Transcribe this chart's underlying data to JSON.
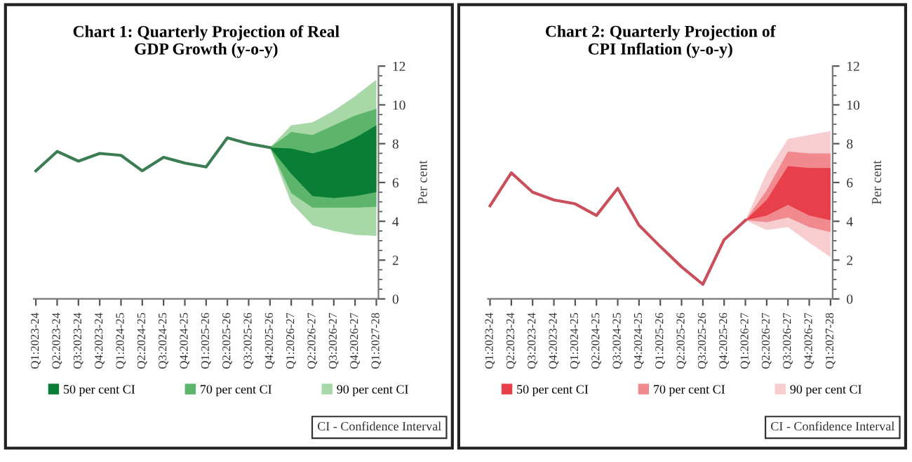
{
  "chart_data": [
    {
      "type": "line",
      "title": "Chart 1: Quarterly Projection of Real\nGDP Growth (y-o-y)",
      "ylabel": "Per cent",
      "categories": [
        "Q1:2023-24",
        "Q2:2023-24",
        "Q3:2023-24",
        "Q4:2023-24",
        "Q1:2024-25",
        "Q2:2024-25",
        "Q3:2024-25",
        "Q4:2024-25",
        "Q1:2025-26",
        "Q2:2025-26",
        "Q3:2025-26",
        "Q4:2025-26",
        "Q1:2026-27",
        "Q2:2026-27",
        "Q3:2026-27",
        "Q4:2026-27",
        "Q1:2027-28"
      ],
      "series": [
        {
          "type": "area",
          "name": "90 per cent CI",
          "color": "#a8d8a8",
          "values": [
            null,
            null,
            null,
            null,
            null,
            null,
            null,
            null,
            null,
            null,
            null,
            null,
            null,
            null,
            null,
            null,
            null
          ],
          "lower": [
            null,
            null,
            null,
            null,
            null,
            null,
            null,
            null,
            null,
            null,
            null,
            7.8,
            4.95,
            3.8,
            3.5,
            3.3,
            3.25
          ],
          "upper": [
            null,
            null,
            null,
            null,
            null,
            null,
            null,
            null,
            null,
            null,
            null,
            7.8,
            8.95,
            9.1,
            9.7,
            10.45,
            11.3
          ]
        },
        {
          "type": "area",
          "name": "70 per cent CI",
          "color": "#5cb56a",
          "values": [
            null,
            null,
            null,
            null,
            null,
            null,
            null,
            null,
            null,
            null,
            null,
            null,
            null,
            null,
            null,
            null,
            null
          ],
          "lower": [
            null,
            null,
            null,
            null,
            null,
            null,
            null,
            null,
            null,
            null,
            null,
            7.8,
            5.45,
            4.7,
            4.7,
            4.7,
            4.75
          ],
          "upper": [
            null,
            null,
            null,
            null,
            null,
            null,
            null,
            null,
            null,
            null,
            null,
            7.8,
            8.6,
            8.45,
            8.95,
            9.45,
            9.8
          ]
        },
        {
          "type": "area",
          "name": "50 per cent CI",
          "color": "#0a7d36",
          "values": [
            null,
            null,
            null,
            null,
            null,
            null,
            null,
            null,
            null,
            null,
            null,
            null,
            null,
            null,
            null,
            null,
            null
          ],
          "lower": [
            null,
            null,
            null,
            null,
            null,
            null,
            null,
            null,
            null,
            null,
            null,
            7.8,
            6.45,
            5.3,
            5.2,
            5.3,
            5.5
          ],
          "upper": [
            null,
            null,
            null,
            null,
            null,
            null,
            null,
            null,
            null,
            null,
            null,
            7.8,
            7.75,
            7.5,
            7.8,
            8.3,
            8.95
          ]
        },
        {
          "color": "#3a7d52",
          "values": [
            6.6,
            7.6,
            7.1,
            7.5,
            7.4,
            6.6,
            7.3,
            7.0,
            6.8,
            8.3,
            8.0,
            7.8,
            null,
            null,
            null,
            null,
            null
          ]
        }
      ],
      "ylim": [
        0,
        12
      ],
      "yticks": [
        0,
        2,
        4,
        6,
        8,
        10,
        12
      ],
      "grid": false,
      "legend": "bottom",
      "annotations": [
        "CI - Confidence Interval"
      ]
    },
    {
      "type": "line",
      "title": "Chart 2: Quarterly Projection of\nCPI Inflation (y-o-y)",
      "ylabel": "Per cent",
      "categories": [
        "Q1:2023-24",
        "Q2:2023-24",
        "Q3:2023-24",
        "Q4:2023-24",
        "Q1:2024-25",
        "Q2:2024-25",
        "Q3:2024-25",
        "Q4:2024-25",
        "Q1:2025-26",
        "Q2:2025-26",
        "Q3:2025-26",
        "Q4:2025-26",
        "Q1:2026-27",
        "Q2:2026-27",
        "Q3:2026-27",
        "Q4:2026-27",
        "Q1:2027-28"
      ],
      "series": [
        {
          "type": "area",
          "name": "90 per cent CI",
          "color": "#f8cdd0",
          "values": [
            null,
            null,
            null,
            null,
            null,
            null,
            null,
            null,
            null,
            null,
            null,
            null,
            null,
            null,
            null,
            null,
            null
          ],
          "lower": [
            null,
            null,
            null,
            null,
            null,
            null,
            null,
            null,
            null,
            null,
            null,
            null,
            4.05,
            3.55,
            3.7,
            2.9,
            2.15
          ],
          "upper": [
            null,
            null,
            null,
            null,
            null,
            null,
            null,
            null,
            null,
            null,
            null,
            null,
            4.05,
            6.5,
            8.25,
            8.45,
            8.65
          ]
        },
        {
          "type": "area",
          "name": "70 per cent CI",
          "color": "#f08a8e",
          "values": [
            null,
            null,
            null,
            null,
            null,
            null,
            null,
            null,
            null,
            null,
            null,
            null,
            null,
            null,
            null,
            null,
            null
          ],
          "lower": [
            null,
            null,
            null,
            null,
            null,
            null,
            null,
            null,
            null,
            null,
            null,
            null,
            4.05,
            3.95,
            4.2,
            3.7,
            3.45
          ],
          "upper": [
            null,
            null,
            null,
            null,
            null,
            null,
            null,
            null,
            null,
            null,
            null,
            null,
            4.05,
            5.6,
            7.6,
            7.5,
            7.5
          ]
        },
        {
          "type": "area",
          "name": "50 per cent CI",
          "color": "#e8404a",
          "values": [
            null,
            null,
            null,
            null,
            null,
            null,
            null,
            null,
            null,
            null,
            null,
            null,
            null,
            null,
            null,
            null,
            null
          ],
          "lower": [
            null,
            null,
            null,
            null,
            null,
            null,
            null,
            null,
            null,
            null,
            null,
            null,
            4.05,
            4.3,
            4.85,
            4.3,
            4.05
          ],
          "upper": [
            null,
            null,
            null,
            null,
            null,
            null,
            null,
            null,
            null,
            null,
            null,
            null,
            4.05,
            5.1,
            6.85,
            6.75,
            6.75
          ]
        },
        {
          "color": "#c9505a",
          "values": [
            4.8,
            6.5,
            5.5,
            5.1,
            4.9,
            4.3,
            5.7,
            3.8,
            2.7,
            1.65,
            0.75,
            3.05,
            4.05,
            null,
            null,
            null,
            null
          ]
        }
      ],
      "ylim": [
        0,
        12
      ],
      "yticks": [
        0,
        2,
        4,
        6,
        8,
        10,
        12
      ],
      "grid": false,
      "legend": "bottom",
      "annotations": [
        "CI - Confidence Interval"
      ]
    }
  ]
}
